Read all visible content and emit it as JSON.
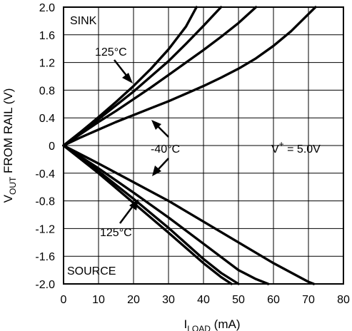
{
  "chart_data": {
    "type": "line",
    "title": "",
    "xlabel": {
      "main": "I",
      "sub": "LOAD",
      "unit": " (mA)"
    },
    "ylabel": {
      "main": "V",
      "sub": "OUT",
      "rest": " FROM RAIL (V)"
    },
    "xlim": [
      0,
      80
    ],
    "ylim": [
      -2.0,
      2.0
    ],
    "x_ticks": [
      "0",
      "10",
      "20",
      "30",
      "40",
      "50",
      "60",
      "70",
      "80"
    ],
    "y_ticks": [
      "2.0",
      "1.6",
      "1.2",
      "0.8",
      "0.4",
      "0",
      "-0.4",
      "-0.8",
      "-1.2",
      "-1.6",
      "-2.0"
    ],
    "grid": true,
    "annotations": {
      "sink": "SINK",
      "source": "SOURCE",
      "temp_hot_sink": "125°C",
      "temp_cold": "-40°C",
      "temp_hot_source": "125°C",
      "supply": {
        "main": "V",
        "sup": "+",
        "rest": " = 5.0V"
      }
    },
    "series": [
      {
        "region": "sink",
        "x": [
          0,
          5,
          10,
          15,
          20,
          25,
          30,
          35,
          38
        ],
        "y": [
          0,
          0.2,
          0.41,
          0.63,
          0.86,
          1.11,
          1.39,
          1.72,
          2.0
        ]
      },
      {
        "region": "sink",
        "x": [
          0,
          5,
          10,
          15,
          20,
          25,
          30,
          35,
          40,
          45
        ],
        "y": [
          0,
          0.19,
          0.38,
          0.58,
          0.78,
          1.0,
          1.22,
          1.47,
          1.73,
          2.0
        ]
      },
      {
        "region": "sink",
        "x": [
          0,
          5,
          10,
          15,
          20,
          25,
          30,
          35,
          40,
          45,
          50,
          55
        ],
        "y": [
          0,
          0.17,
          0.34,
          0.5,
          0.67,
          0.84,
          1.02,
          1.2,
          1.38,
          1.57,
          1.77,
          2.0
        ]
      },
      {
        "region": "sink",
        "x": [
          0,
          5,
          10,
          15,
          20,
          25,
          30,
          35,
          40,
          45,
          50,
          55,
          60,
          65,
          70,
          72
        ],
        "y": [
          0,
          0.12,
          0.23,
          0.34,
          0.44,
          0.54,
          0.64,
          0.75,
          0.86,
          0.98,
          1.11,
          1.26,
          1.44,
          1.65,
          1.9,
          2.0
        ]
      },
      {
        "region": "source",
        "x": [
          0,
          10,
          20,
          30,
          40,
          45,
          48
        ],
        "y": [
          0,
          -0.4,
          -0.83,
          -1.26,
          -1.7,
          -1.9,
          -2.0
        ]
      },
      {
        "region": "source",
        "x": [
          0,
          10,
          20,
          30,
          40,
          45,
          50
        ],
        "y": [
          0,
          -0.37,
          -0.77,
          -1.19,
          -1.64,
          -1.84,
          -2.0
        ]
      },
      {
        "region": "source",
        "x": [
          0,
          10,
          20,
          30,
          40,
          50,
          55,
          58.5
        ],
        "y": [
          0,
          -0.33,
          -0.68,
          -1.04,
          -1.42,
          -1.8,
          -1.93,
          -2.0
        ]
      },
      {
        "region": "source",
        "x": [
          0,
          10,
          20,
          30,
          40,
          50,
          60,
          70,
          71.5
        ],
        "y": [
          0,
          -0.26,
          -0.53,
          -0.8,
          -1.1,
          -1.4,
          -1.7,
          -1.97,
          -2.0
        ]
      }
    ]
  }
}
